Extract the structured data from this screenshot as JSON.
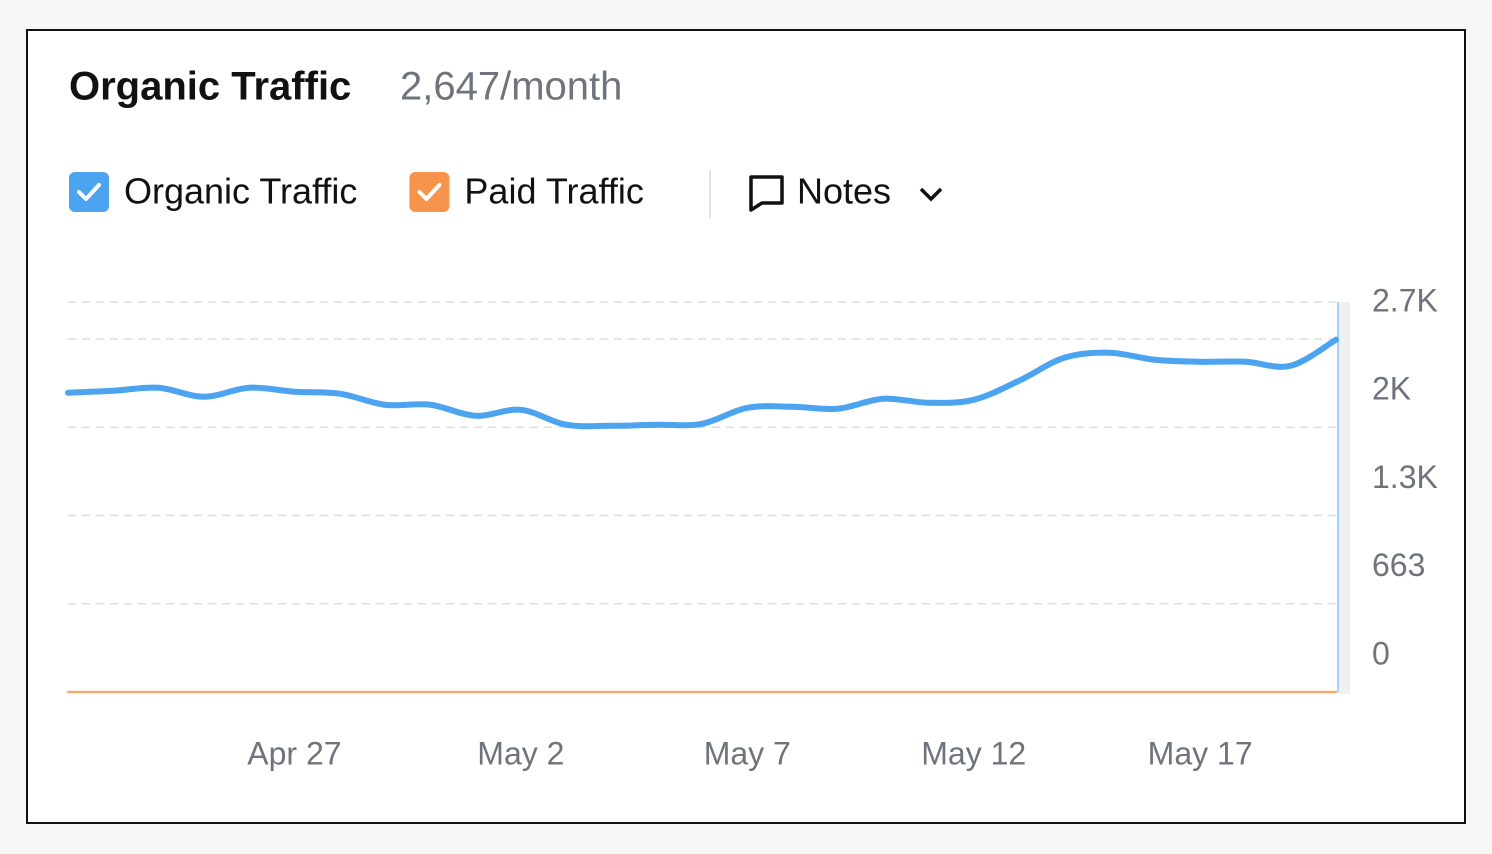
{
  "chart_data": {
    "type": "line",
    "title": "Organic Traffic",
    "subtitle": "2,647/month",
    "notes_label": "Notes",
    "categories": [
      "",
      "",
      "",
      "",
      "",
      "Apr 27",
      "",
      "",
      "",
      "",
      "May 2",
      "",
      "",
      "",
      "",
      "May 7",
      "",
      "",
      "",
      "",
      "May 12",
      "",
      "",
      "",
      "",
      "May 17",
      "",
      "",
      ""
    ],
    "series": [
      {
        "name": "Organic Traffic",
        "color": "#4ca3ef",
        "values": [
          2248,
          2263,
          2286,
          2218,
          2286,
          2256,
          2241,
          2158,
          2158,
          2075,
          2120,
          2008,
          2000,
          2008,
          2015,
          2135,
          2143,
          2128,
          2203,
          2173,
          2195,
          2338,
          2511,
          2549,
          2496,
          2481,
          2481,
          2451,
          2647
        ]
      },
      {
        "name": "Paid Traffic",
        "color": "#f5944a",
        "values": [
          0,
          0,
          0,
          0,
          0,
          0,
          0,
          0,
          0,
          0,
          0,
          0,
          0,
          0,
          0,
          0,
          0,
          0,
          0,
          0,
          0,
          0,
          0,
          0,
          0,
          0,
          0,
          0,
          0
        ]
      }
    ],
    "ylim": [
      0,
      2930
    ],
    "yticks": [
      0,
      663,
      {
        "value": 1326,
        "label": "1.3K"
      },
      {
        "value": 1989,
        "label": "2K"
      },
      {
        "value": 2652,
        "label": "2.7K"
      }
    ],
    "grid": true
  }
}
